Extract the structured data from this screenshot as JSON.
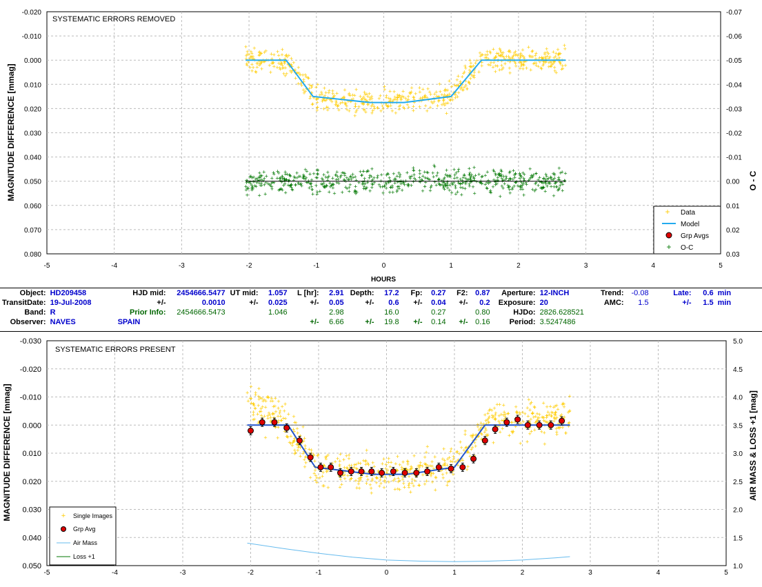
{
  "top_chart": {
    "title": "SYSTEMATIC ERRORS REMOVED",
    "ylabel": "MAGNITUDE DIFFERENCE [mmag]",
    "y2label": "O - C",
    "xlabel": "HOURS",
    "x_ticks": [
      "-5",
      "-4",
      "-3",
      "-2",
      "-1",
      "0",
      "1",
      "2",
      "3",
      "4",
      "5"
    ],
    "y_ticks": [
      "-0.020",
      "-0.010",
      "0.000",
      "0.010",
      "0.020",
      "0.030",
      "0.040",
      "0.050",
      "0.060",
      "0.070",
      "0.080"
    ],
    "y2_ticks": [
      "-0.07",
      "-0.06",
      "-0.05",
      "-0.04",
      "-0.03",
      "-0.02",
      "-0.01",
      "0.00",
      "0.01",
      "0.02",
      "0.03"
    ],
    "legend": {
      "data": "Data",
      "model": "Model",
      "grp": "Grp Avgs",
      "oc": "O-C"
    }
  },
  "bottom_chart": {
    "title": "SYSTEMATIC ERRORS PRESENT",
    "ylabel": "MAGNITUDE DIFFERENCE [mmag]",
    "y2label": "AIR MASS & LOSS +1 [mag]",
    "x_ticks": [
      "-5",
      "-4",
      "-3",
      "-2",
      "-1",
      "0",
      "1",
      "2",
      "3",
      "4",
      "5"
    ],
    "y_ticks": [
      "-0.030",
      "-0.020",
      "-0.010",
      "0.000",
      "0.010",
      "0.020",
      "0.030",
      "0.040",
      "0.050"
    ],
    "y2_ticks": [
      "5.0",
      "4.5",
      "4.0",
      "3.5",
      "3.0",
      "2.5",
      "2.0",
      "1.5",
      "1.0"
    ],
    "legend": {
      "single": "Single Images",
      "grp": "Grp Avg",
      "air": "Air Mass",
      "loss": "Loss +1"
    }
  },
  "info": {
    "object_lbl": "Object:",
    "object": "HD209458",
    "hjdmid_lbl": "HJD mid:",
    "hjdmid": "2454666.5477",
    "utmid_lbl": "UT mid:",
    "utmid": "1.057",
    "lhr_lbl": "L [hr]:",
    "lhr": "2.91",
    "depth_lbl": "Depth:",
    "depth": "17.2",
    "fp_lbl": "Fp:",
    "fp": "0.27",
    "f2_lbl": "F2:",
    "f2": "0.87",
    "aperture_lbl": "Aperture:",
    "aperture": "12-INCH",
    "trend_lbl": "Trend:",
    "trend": "-0.08",
    "late_lbl": "Late:",
    "late": "0.6",
    "min": "min",
    "transit_lbl": "TransitDate:",
    "transit": "19-Jul-2008",
    "pm": "+/-",
    "hjdmid_err": "0.0010",
    "utmid_err": "0.025",
    "lhr_err": "0.05",
    "depth_err": "0.6",
    "fp_err": "0.04",
    "f2_err": "0.2",
    "exposure_lbl": "Exposure:",
    "exposure": "20",
    "amc_lbl": "AMC:",
    "amc": "1.5",
    "late_err": "1.5",
    "band_lbl": "Band:",
    "band": "R",
    "prior_lbl": "Prior Info:",
    "prior_hjd": "2454666.5473",
    "prior_ut": "1.046",
    "prior_l": "2.98",
    "prior_depth": "16.0",
    "prior_fp": "0.27",
    "prior_f2": "0.80",
    "hjdo_lbl": "HJDo:",
    "hjdo": "2826.628521",
    "observer_lbl": "Observer:",
    "observer": "NAVES",
    "location": "SPAIN",
    "prior_l_err": "6.66",
    "prior_depth_err": "19.8",
    "prior_fp_err": "0.14",
    "prior_f2_err": "0.16",
    "period_lbl": "Period:",
    "period": "3.5247486"
  },
  "chart_data": [
    {
      "type": "scatter",
      "title": "SYSTEMATIC ERRORS REMOVED",
      "xlabel": "HOURS",
      "ylabel": "MAGNITUDE DIFFERENCE [mmag]",
      "y2label": "O - C",
      "xlim": [
        -5,
        5
      ],
      "ylim": [
        -0.02,
        0.08
      ],
      "y_inverted": true,
      "y2lim": [
        -0.07,
        0.03
      ],
      "model": {
        "x": [
          -2.05,
          -1.45,
          -1.05,
          -0.2,
          0.3,
          1.0,
          1.45,
          2.7
        ],
        "y": [
          0.0,
          0.0,
          0.015,
          0.0175,
          0.0175,
          0.015,
          0.0,
          0.0
        ]
      },
      "data_spread_mmag": 0.005,
      "oc_offset": 0.05,
      "oc_spread": 0.005,
      "x_range": [
        -2.05,
        2.7
      ],
      "legend": [
        "Data",
        "Model",
        "Grp Avgs",
        "O-C"
      ],
      "legend_position": "bottom-right",
      "grid": true
    },
    {
      "type": "scatter",
      "title": "SYSTEMATIC ERRORS PRESENT",
      "xlabel": "",
      "ylabel": "MAGNITUDE DIFFERENCE [mmag]",
      "y2label": "AIR MASS & LOSS +1 [mag]",
      "xlim": [
        -5,
        5
      ],
      "ylim": [
        -0.03,
        0.05
      ],
      "y_inverted": true,
      "y2lim": [
        1.0,
        5.0
      ],
      "model": {
        "x": [
          -2.05,
          -1.45,
          -1.05,
          -0.2,
          0.3,
          1.0,
          1.45,
          2.7
        ],
        "y": [
          0.0,
          0.0,
          0.015,
          0.0175,
          0.0175,
          0.015,
          0.0,
          0.0
        ]
      },
      "grp_avg": {
        "x": [
          -2.0,
          -1.83,
          -1.65,
          -1.47,
          -1.28,
          -1.12,
          -0.97,
          -0.82,
          -0.68,
          -0.52,
          -0.37,
          -0.22,
          -0.07,
          0.1,
          0.27,
          0.44,
          0.6,
          0.77,
          0.95,
          1.12,
          1.28,
          1.45,
          1.6,
          1.77,
          1.93,
          2.08,
          2.25,
          2.42,
          2.58
        ],
        "y": [
          0.002,
          -0.001,
          -0.001,
          0.001,
          0.0055,
          0.0115,
          0.015,
          0.015,
          0.017,
          0.0165,
          0.0165,
          0.0165,
          0.017,
          0.0165,
          0.017,
          0.017,
          0.0165,
          0.015,
          0.0155,
          0.015,
          0.012,
          0.0055,
          0.0015,
          -0.001,
          -0.002,
          0.0,
          0.0,
          0.0,
          -0.0015
        ]
      },
      "air_mass": {
        "x": [
          -2.05,
          -1.5,
          -1.0,
          -0.5,
          0.0,
          0.5,
          1.0,
          1.5,
          2.0,
          2.5,
          2.7
        ],
        "y": [
          1.4,
          1.3,
          1.22,
          1.15,
          1.1,
          1.08,
          1.07,
          1.08,
          1.1,
          1.14,
          1.16
        ]
      },
      "loss_plus_1": {
        "x": [
          -2.05,
          2.7
        ],
        "y": [
          3.5,
          3.5
        ]
      },
      "x_range": [
        -2.05,
        2.7
      ],
      "legend": [
        "Single Images",
        "Grp Avg",
        "Air Mass",
        "Loss +1"
      ],
      "legend_position": "bottom-left",
      "grid": true
    }
  ]
}
